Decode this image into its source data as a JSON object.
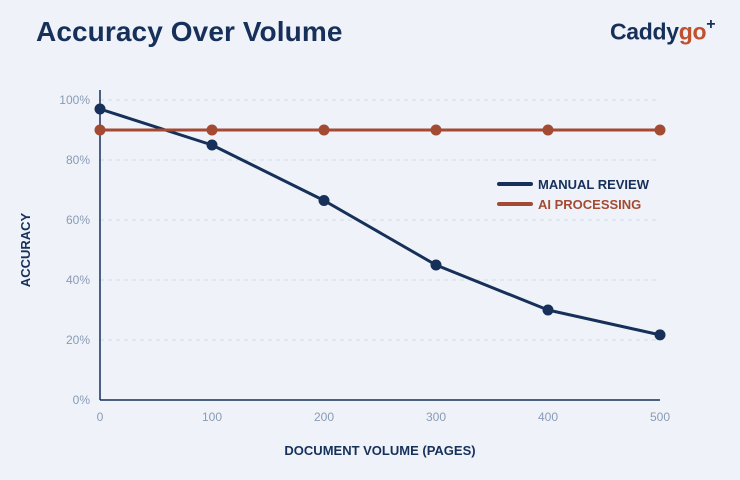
{
  "title": "Accuracy Over Volume",
  "logo": {
    "main": "Caddy",
    "accent": "go",
    "mark": "+"
  },
  "chart_data": {
    "type": "line",
    "xlabel": "DOCUMENT VOLUME (PAGES)",
    "ylabel": "ACCURACY",
    "x": [
      0,
      100,
      200,
      300,
      400,
      500
    ],
    "xlim": [
      0,
      500
    ],
    "ylim": [
      0,
      100
    ],
    "x_ticks": [
      "0",
      "100",
      "200",
      "300",
      "400",
      "500"
    ],
    "y_ticks": [
      "0%",
      "20%",
      "40%",
      "60%",
      "80%",
      "100%"
    ],
    "grid": true,
    "legend_position": "right",
    "series": [
      {
        "name": "MANUAL REVIEW",
        "color": "#16305a",
        "values": [
          97,
          85,
          66.5,
          45,
          30,
          21.7
        ]
      },
      {
        "name": "AI PROCESSING",
        "color": "#a44a32",
        "values": [
          90,
          90,
          90,
          90,
          90,
          90
        ]
      }
    ]
  }
}
